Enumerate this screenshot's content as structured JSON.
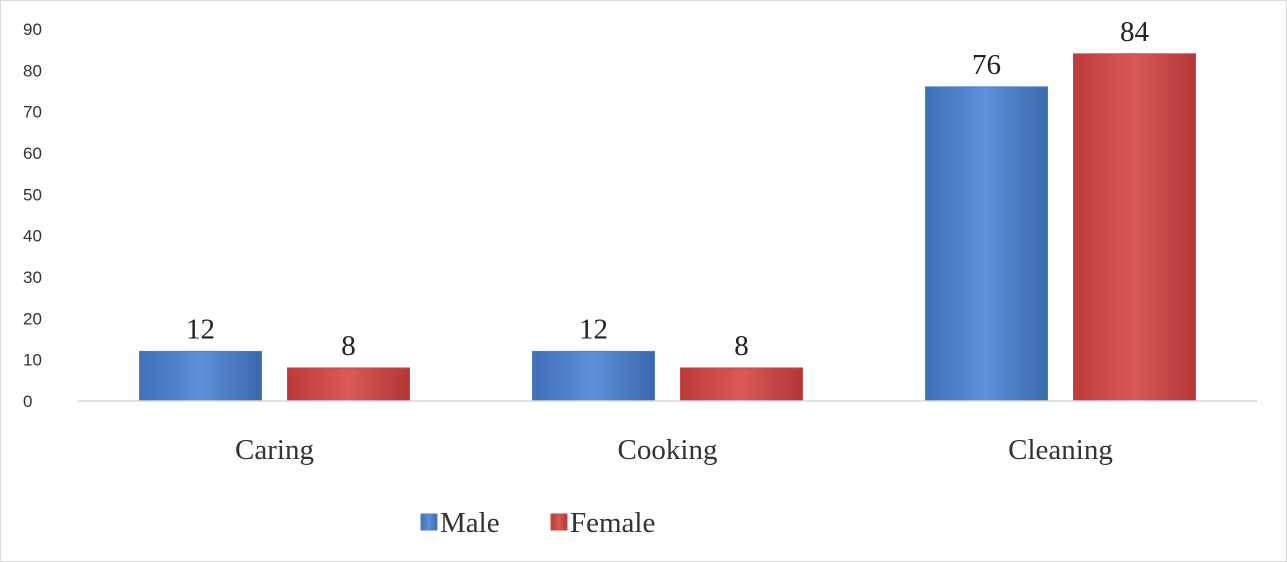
{
  "chart_data": {
    "type": "bar",
    "categories": [
      "Caring",
      "Cooking",
      "Cleaning"
    ],
    "series": [
      {
        "name": "Male",
        "values": [
          12,
          12,
          76
        ],
        "color": "#4a7ec8"
      },
      {
        "name": "Female",
        "values": [
          8,
          8,
          84
        ],
        "color": "#cd4646"
      }
    ],
    "title": "",
    "xlabel": "",
    "ylabel": "",
    "ylim": [
      0,
      90
    ],
    "yticks": [
      0,
      10,
      20,
      30,
      40,
      50,
      60,
      70,
      80,
      90
    ],
    "grid": false,
    "legend_position": "bottom"
  }
}
